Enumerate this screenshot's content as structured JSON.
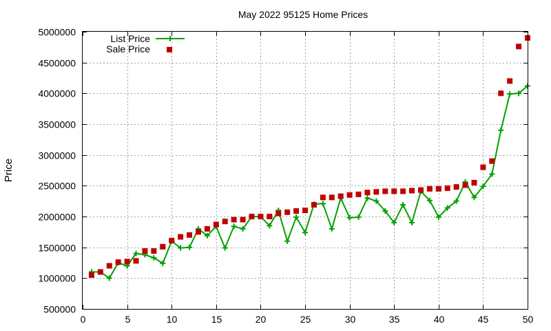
{
  "chart_data": {
    "type": "line",
    "title": "May 2022 95125 Home Prices",
    "xlabel": "",
    "ylabel": "Price",
    "xlim": [
      0,
      50
    ],
    "ylim": [
      500000,
      5000000
    ],
    "xticks": [
      0,
      5,
      10,
      15,
      20,
      25,
      30,
      35,
      40,
      45,
      50
    ],
    "yticks": [
      500000,
      1000000,
      1500000,
      2000000,
      2500000,
      3000000,
      3500000,
      4000000,
      4500000,
      5000000
    ],
    "grid": true,
    "legend_position": "top-left",
    "x": [
      1,
      2,
      3,
      4,
      5,
      6,
      7,
      8,
      9,
      10,
      11,
      12,
      13,
      14,
      15,
      16,
      17,
      18,
      19,
      20,
      21,
      22,
      23,
      24,
      25,
      26,
      27,
      28,
      29,
      30,
      31,
      32,
      33,
      34,
      35,
      36,
      37,
      38,
      39,
      40,
      41,
      42,
      43,
      44,
      45,
      46,
      47,
      48,
      49,
      50
    ],
    "series": [
      {
        "name": "List Price",
        "style": "line-cross",
        "color": "#00a000",
        "values": [
          1100000,
          1100000,
          1000000,
          1250000,
          1200000,
          1400000,
          1380000,
          1330000,
          1240000,
          1600000,
          1490000,
          1500000,
          1800000,
          1690000,
          1840000,
          1490000,
          1840000,
          1800000,
          2000000,
          2000000,
          1850000,
          2100000,
          1600000,
          1990000,
          1740000,
          2200000,
          2210000,
          1800000,
          2300000,
          1980000,
          1990000,
          2300000,
          2250000,
          2090000,
          1900000,
          2190000,
          1900000,
          2410000,
          2260000,
          1990000,
          2140000,
          2250000,
          2560000,
          2310000,
          2490000,
          2690000,
          3400000,
          3990000,
          4000000,
          4120000
        ]
      },
      {
        "name": "Sale Price",
        "style": "square",
        "color": "#c00000",
        "values": [
          1050000,
          1100000,
          1200000,
          1260000,
          1270000,
          1280000,
          1440000,
          1440000,
          1510000,
          1610000,
          1670000,
          1700000,
          1750000,
          1800000,
          1870000,
          1920000,
          1950000,
          1950000,
          2000000,
          2000000,
          2000000,
          2050000,
          2070000,
          2090000,
          2100000,
          2190000,
          2310000,
          2310000,
          2330000,
          2350000,
          2360000,
          2390000,
          2400000,
          2410000,
          2410000,
          2410000,
          2420000,
          2430000,
          2450000,
          2450000,
          2460000,
          2480000,
          2510000,
          2550000,
          2800000,
          2900000,
          4000000,
          4200000,
          4760000,
          4900000
        ]
      }
    ]
  }
}
